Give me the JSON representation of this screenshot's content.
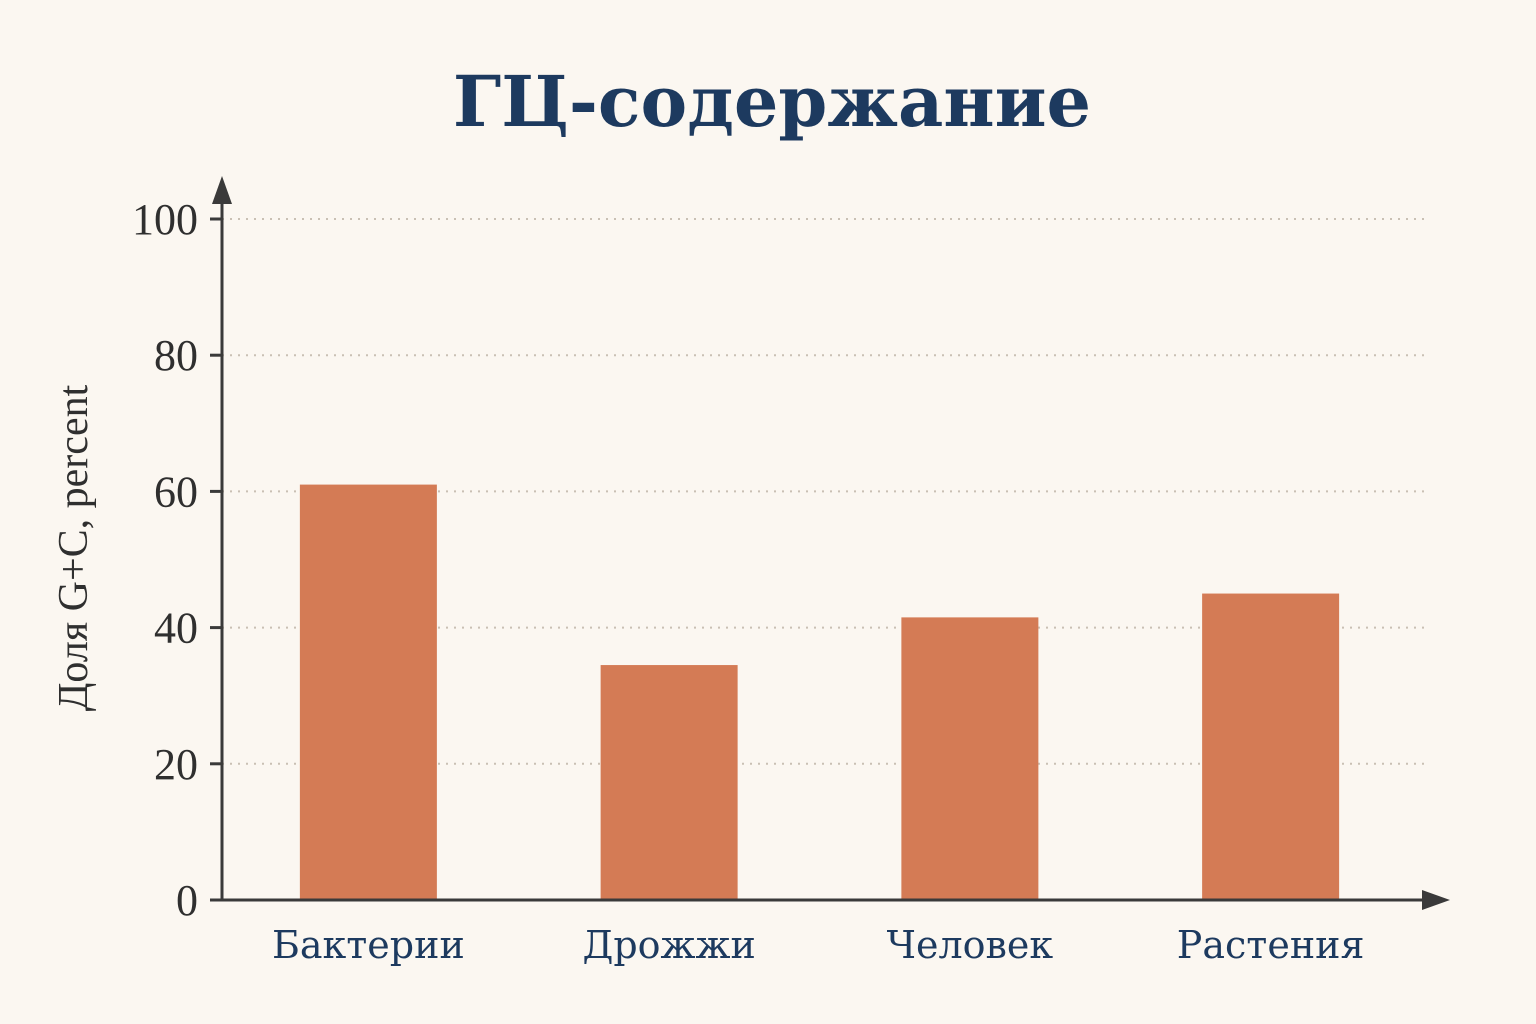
{
  "chart_data": {
    "type": "bar",
    "title": "ГЦ-содержание",
    "xlabel": "",
    "ylabel": "Доля G+C, percent",
    "categories": [
      "Бактерии",
      "Дрожжи",
      "Человек",
      "Растения"
    ],
    "values": [
      61,
      34.5,
      41.5,
      45
    ],
    "ylim": [
      0,
      100
    ],
    "yticks": [
      0,
      20,
      40,
      60,
      80,
      100
    ],
    "grid": true,
    "bar_color": "#d47b55",
    "title_color": "#1d3a5f"
  }
}
